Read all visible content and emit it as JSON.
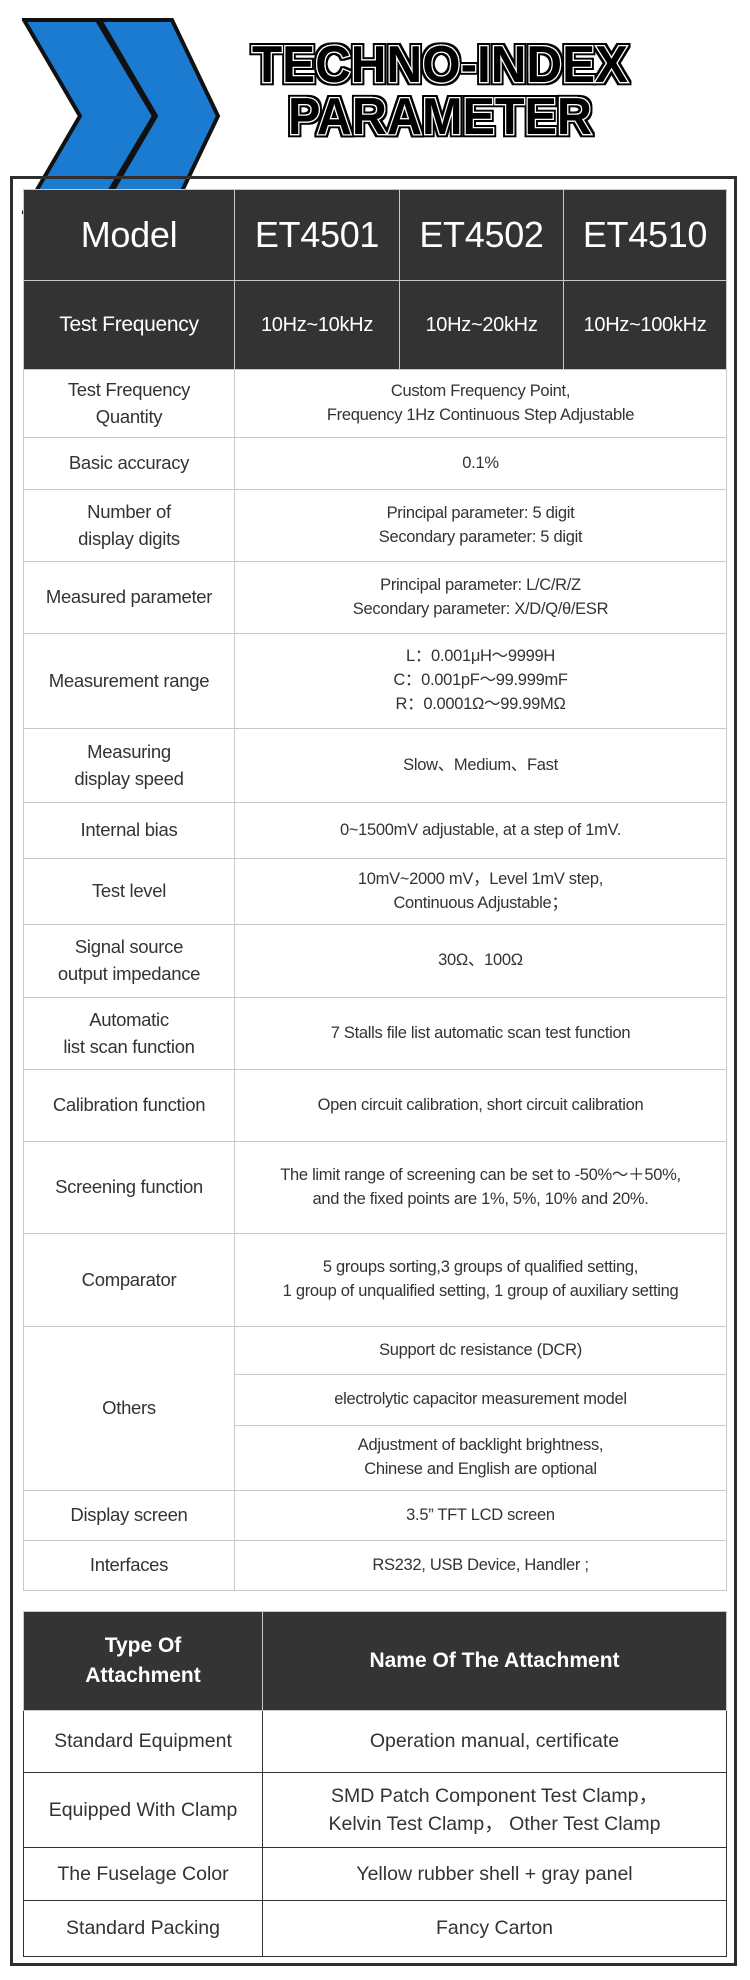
{
  "header": {
    "title_line1": "TECHNO-INDEX",
    "title_line2": "PARAMETER",
    "logo_icon": "double-chevron-right-icon",
    "logo_color": "#1a7bd0"
  },
  "spec_table": {
    "model_label": "Model",
    "models": [
      "ET4501",
      "ET4502",
      "ET4510"
    ],
    "test_frequency_label": "Test Frequency",
    "test_frequencies": [
      "10Hz~10kHz",
      "10Hz~20kHz",
      "10Hz~100kHz"
    ],
    "rows": [
      {
        "label": [
          "Test Frequency",
          "Quantity"
        ],
        "value": [
          "Custom Frequency Point,",
          "Frequency 1Hz Continuous Step Adjustable"
        ]
      },
      {
        "label": [
          "Basic accuracy"
        ],
        "value": [
          "0.1%"
        ]
      },
      {
        "label": [
          "Number of",
          "display digits"
        ],
        "value": [
          "Principal parameter: 5 digit",
          "Secondary parameter: 5 digit"
        ]
      },
      {
        "label": [
          "Measured parameter"
        ],
        "value": [
          "Principal parameter: L/C/R/Z",
          "Secondary parameter: X/D/Q/θ/ESR"
        ]
      },
      {
        "label": [
          "Measurement range"
        ],
        "value": [
          "L：0.001μH～9999H",
          "C：0.001pF～99.999mF",
          "R：0.0001Ω～99.99MΩ"
        ]
      },
      {
        "label": [
          "Measuring",
          "display speed"
        ],
        "value": [
          "Slow、Medium、Fast"
        ]
      },
      {
        "label": [
          "Internal bias"
        ],
        "value": [
          "0~1500mV adjustable, at a step of 1mV."
        ]
      },
      {
        "label": [
          "Test level"
        ],
        "value": [
          "10mV~2000 mV，Level 1mV step,",
          "Continuous Adjustable；"
        ]
      },
      {
        "label": [
          "Signal source",
          "output impedance"
        ],
        "value": [
          "30Ω、100Ω"
        ]
      },
      {
        "label": [
          "Automatic",
          "list scan function"
        ],
        "value": [
          "7 Stalls file list automatic scan test function"
        ]
      },
      {
        "label": [
          "Calibration function"
        ],
        "value": [
          "Open circuit calibration, short circuit calibration"
        ]
      },
      {
        "label": [
          "Screening function"
        ],
        "value": [
          "The limit range of screening can be set to -50%～＋50%,",
          "and the fixed points are 1%, 5%, 10% and 20%."
        ]
      },
      {
        "label": [
          "Comparator"
        ],
        "value": [
          "5 groups sorting,3 groups of qualified setting,",
          "1 group of unqualified setting, 1 group of auxiliary setting"
        ]
      }
    ],
    "others": {
      "label": "Others",
      "items": [
        [
          "Support dc resistance (DCR)"
        ],
        [
          "electrolytic capacitor measurement model"
        ],
        [
          "Adjustment of backlight brightness,",
          "Chinese and English are optional"
        ]
      ]
    },
    "tail_rows": [
      {
        "label": "Display screen",
        "value": "3.5”  TFT LCD screen"
      },
      {
        "label": "Interfaces",
        "value": "RS232, USB Device, Handler ;"
      }
    ]
  },
  "attachment_table": {
    "header": {
      "type": [
        "Type Of",
        "Attachment"
      ],
      "name": "Name Of The Attachment"
    },
    "rows": [
      {
        "type": "Standard Equipment",
        "name": [
          "Operation manual, certificate"
        ]
      },
      {
        "type": "Equipped With Clamp",
        "name": [
          "SMD Patch Component Test Clamp，",
          "Kelvin Test Clamp， Other Test Clamp"
        ]
      },
      {
        "type": "The Fuselage Color",
        "name": [
          "Yellow rubber shell + gray panel"
        ]
      },
      {
        "type": "Standard Packing",
        "name": [
          "Fancy Carton"
        ]
      }
    ]
  }
}
